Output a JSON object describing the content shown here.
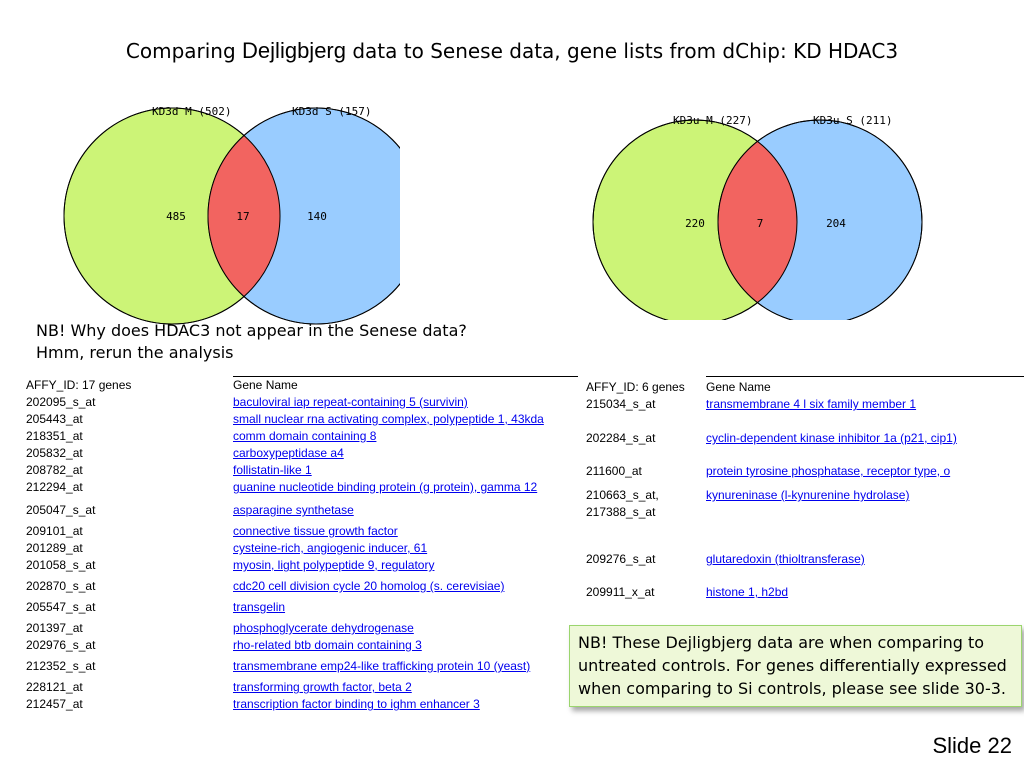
{
  "title": {
    "prefix": "Comparing ",
    "emphasis": "Dejligbjerg",
    "suffix": " data to Senese data, gene lists from dChip: KD HDAC3"
  },
  "venn_left": {
    "label_a": "KD3d M (502)",
    "label_b": "KD3d S (157)",
    "only_a": "485",
    "overlap": "17",
    "only_b": "140"
  },
  "venn_right": {
    "label_a": "KD3u M (227)",
    "label_b": "KD3u S (211)",
    "only_a": "220",
    "overlap": "7",
    "only_b": "204"
  },
  "colors": {
    "circle_a": "#ccf477",
    "circle_b": "#99ccff",
    "overlap": "#f26460",
    "link": "#0000ee",
    "nb_box_bg": "#eef8d8",
    "nb_box_border": "#9bd56e"
  },
  "note1": {
    "line1": "NB! Why does HDAC3 not appear in the Senese data?",
    "line2": "Hmm, rerun the analysis"
  },
  "table1": {
    "header_id": "AFFY_ID: 17 genes",
    "header_name": "Gene Name",
    "rows": [
      {
        "id": "202095_s_at",
        "name": "baculoviral iap repeat-containing 5 (survivin)"
      },
      {
        "id": "205443_at",
        "name": "small nuclear rna activating complex, polypeptide 1, 43kda"
      },
      {
        "id": "218351_at",
        "name": "comm domain containing 8"
      },
      {
        "id": "205832_at",
        "name": "carboxypeptidase a4"
      },
      {
        "id": "208782_at",
        "name": "follistatin-like 1"
      },
      {
        "id": "212294_at",
        "name": "guanine nucleotide binding protein (g protein), gamma 12"
      },
      {
        "id": "205047_s_at",
        "name": "asparagine synthetase"
      },
      {
        "id": "209101_at",
        "name": "connective tissue growth factor"
      },
      {
        "id": "201289_at",
        "name": "cysteine-rich, angiogenic inducer, 61"
      },
      {
        "id": "201058_s_at",
        "name": "myosin, light polypeptide 9, regulatory"
      },
      {
        "id": "202870_s_at",
        "name": "cdc20 cell division cycle 20 homolog (s. cerevisiae)"
      },
      {
        "id": "205547_s_at",
        "name": "transgelin"
      },
      {
        "id": "201397_at",
        "name": "phosphoglycerate dehydrogenase"
      },
      {
        "id": "202976_s_at",
        "name": "rho-related btb domain containing 3"
      },
      {
        "id": "212352_s_at",
        "name": "transmembrane emp24-like trafficking protein 10 (yeast)"
      },
      {
        "id": "228121_at",
        "name": "transforming growth factor, beta 2"
      },
      {
        "id": "212457_at",
        "name": "transcription factor binding to ighm enhancer 3"
      }
    ]
  },
  "table2": {
    "header_id": "AFFY_ID: 6 genes",
    "header_name": "Gene Name",
    "rows": [
      {
        "id": "215034_s_at",
        "id2": "",
        "name": "transmembrane 4 l six family member 1"
      },
      {
        "id": "202284_s_at",
        "id2": "",
        "name": "cyclin-dependent kinase inhibitor 1a (p21, cip1)"
      },
      {
        "id": "211600_at",
        "id2": "",
        "name": "protein tyrosine phosphatase, receptor type, o"
      },
      {
        "id": "210663_s_at,",
        "id2": "217388_s_at",
        "name": "kynureninase (l-kynurenine hydrolase)"
      },
      {
        "id": "209276_s_at",
        "id2": "",
        "name": "glutaredoxin (thioltransferase)"
      },
      {
        "id": "209911_x_at",
        "id2": "",
        "name": "histone 1, h2bd"
      }
    ]
  },
  "note2": "NB! These Dejligbjerg data are when comparing to untreated controls. For genes differentially expressed when comparing to Si controls, please see slide 30-3.",
  "slide_number": "Slide 22"
}
